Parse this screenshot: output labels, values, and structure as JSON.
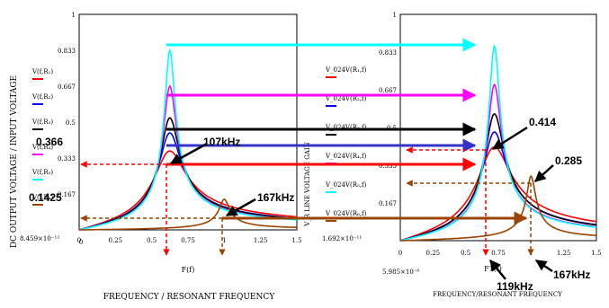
{
  "chart_data": [
    {
      "type": "line",
      "xlabel": "FREQUENCY / RESONANT FREQUENCY",
      "ylabel": "DC OUTPUT VOLTAGE / INPUT VOLTAGE",
      "x_axis_name": "F(f)",
      "xlim": [
        0,
        1.5
      ],
      "ylim": [
        0,
        1
      ],
      "xticks": [
        "0",
        "0.25",
        "0.5",
        "0.75",
        "1",
        "1.25",
        "1.5"
      ],
      "yticks": [
        {
          "v": 0.167,
          "t": "0.167"
        },
        {
          "v": 0.333,
          "t": "0.333"
        },
        {
          "v": 0.5,
          "t": "0.5"
        },
        {
          "v": 0.667,
          "t": "0.667"
        },
        {
          "v": 0.833,
          "t": "0.833"
        },
        {
          "v": 1,
          "t": "1"
        }
      ],
      "ymin_label": "8.459×10⁻¹²",
      "x_range_label": "0",
      "legend": [
        "V(f,R₁)",
        "V(f,R₂)",
        "V(f,R₃)",
        "V(f,R₄)",
        "V(f,R₅)",
        "V(f,R₆)"
      ],
      "series": [
        {
          "color": "#ff0000",
          "f0": 0.625,
          "peak": 0.366,
          "q": 3.0
        },
        {
          "color": "#0000ff",
          "f0": 0.625,
          "peak": 0.45,
          "q": 4.2
        },
        {
          "color": "#000000",
          "f0": 0.625,
          "peak": 0.52,
          "q": 5.0
        },
        {
          "color": "#ff00ff",
          "f0": 0.625,
          "peak": 0.667,
          "q": 7.0
        },
        {
          "color": "#00ffff",
          "f0": 0.625,
          "peak": 0.833,
          "q": 9.0
        },
        {
          "color": "#994400",
          "f0": 1.0,
          "peak": 0.1425,
          "q": 15.0
        }
      ],
      "annotations": {
        "left_value": "0.366",
        "left_low_value": "0.1425",
        "freq1": "107kHz",
        "freq2": "167kHz"
      }
    },
    {
      "type": "line",
      "xlabel": "FREQUENCY/RESONANT FREQUENCY",
      "ylabel": "V_R LINE VOLTAGE GAIN",
      "x_axis_name": "F1(f)",
      "xlim": [
        0,
        1.5
      ],
      "ylim": [
        0,
        1
      ],
      "xticks": [
        "0",
        "0.25",
        "0.5",
        "0.75",
        "1",
        "1.25",
        "1.5"
      ],
      "yticks": [
        {
          "v": 0.167,
          "t": "0.167"
        },
        {
          "v": 0.333,
          "t": "0.333"
        },
        {
          "v": 0.5,
          "t": "0.5"
        },
        {
          "v": 0.667,
          "t": "0.667"
        },
        {
          "v": 0.833,
          "t": "0.833"
        },
        {
          "v": 1,
          "t": "1"
        }
      ],
      "ymin_label": "1.692×10⁻¹¹",
      "x_range_label": "5.985×10⁻⁶",
      "legend": [
        "V_024V(R₁,f)",
        "V_024V(R₂,f)",
        "V_024V(R₃,f)",
        "V_024V(R₄,f)",
        "V_024V(R₅,f)",
        "V_024V(R₆,f)"
      ],
      "series": [
        {
          "color": "#ff0000",
          "f0": 0.72,
          "peak": 0.414,
          "q": 3.0
        },
        {
          "color": "#0000ff",
          "f0": 0.72,
          "peak": 0.48,
          "q": 4.2
        },
        {
          "color": "#000000",
          "f0": 0.72,
          "peak": 0.56,
          "q": 5.0
        },
        {
          "color": "#ff00ff",
          "f0": 0.72,
          "peak": 0.69,
          "q": 7.0
        },
        {
          "color": "#00ffff",
          "f0": 0.72,
          "peak": 0.86,
          "q": 9.0
        },
        {
          "color": "#994400",
          "f0": 1.0,
          "peak": 0.285,
          "q": 15.0
        }
      ],
      "annotations": {
        "right_value": "0.414",
        "right_low_value": "0.285",
        "freq1": "119kHz",
        "freq2": "167kHz"
      }
    }
  ]
}
